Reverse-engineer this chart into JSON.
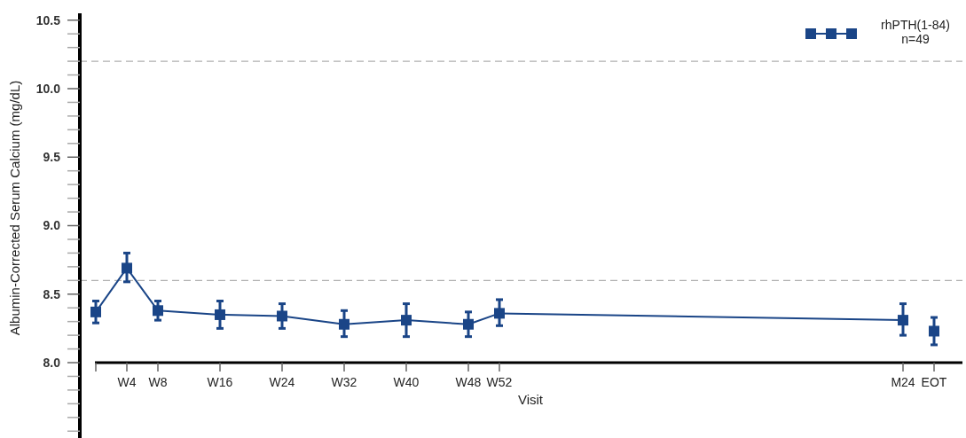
{
  "chart_data": {
    "type": "line",
    "xlabel": "Visit",
    "ylabel": "Albumin-Corrected Serum Calcium (mg/dL)",
    "categories": [
      null,
      "W4",
      "W8",
      null,
      "W16",
      null,
      "W24",
      null,
      "W32",
      null,
      "W40",
      null,
      "W48",
      "W52",
      null,
      null,
      null,
      null,
      null,
      null,
      null,
      null,
      null,
      null,
      null,
      null,
      "M24",
      "EOT"
    ],
    "ylim": [
      7.45,
      10.55
    ],
    "yticks": [
      {
        "value": 7.5,
        "label": null
      },
      {
        "value": 7.6,
        "label": null
      },
      {
        "value": 7.7,
        "label": null
      },
      {
        "value": 7.8,
        "label": null
      },
      {
        "value": 7.9,
        "label": null
      },
      {
        "value": 8.0,
        "label": "8.0"
      },
      {
        "value": 8.1,
        "label": null
      },
      {
        "value": 8.2,
        "label": null
      },
      {
        "value": 8.3,
        "label": null
      },
      {
        "value": 8.4,
        "label": null
      },
      {
        "value": 8.5,
        "label": "8.5"
      },
      {
        "value": 8.6,
        "label": null
      },
      {
        "value": 8.7,
        "label": null
      },
      {
        "value": 8.8,
        "label": null
      },
      {
        "value": 8.9,
        "label": null
      },
      {
        "value": 9.0,
        "label": "9.0"
      },
      {
        "value": 9.1,
        "label": null
      },
      {
        "value": 9.2,
        "label": null
      },
      {
        "value": 9.3,
        "label": null
      },
      {
        "value": 9.4,
        "label": null
      },
      {
        "value": 9.5,
        "label": "9.5"
      },
      {
        "value": 9.6,
        "label": null
      },
      {
        "value": 9.7,
        "label": null
      },
      {
        "value": 9.8,
        "label": null
      },
      {
        "value": 9.9,
        "label": null
      },
      {
        "value": 10.0,
        "label": "10.0"
      },
      {
        "value": 10.1,
        "label": null
      },
      {
        "value": 10.2,
        "label": null
      },
      {
        "value": 10.3,
        "label": null
      },
      {
        "value": 10.4,
        "label": null
      },
      {
        "value": 10.5,
        "label": "10.5"
      }
    ],
    "series": [
      {
        "name": "rhPTH(1-84)\nn=49",
        "color": "#1a4587",
        "values": [
          8.37,
          8.69,
          8.38,
          null,
          8.35,
          null,
          8.34,
          null,
          8.28,
          null,
          8.31,
          null,
          8.28,
          8.36,
          null,
          null,
          null,
          null,
          null,
          null,
          null,
          null,
          null,
          null,
          null,
          null,
          8.31,
          null
        ],
        "errors": [
          [
            8.29,
            8.45
          ],
          [
            8.59,
            8.8
          ],
          [
            8.31,
            8.45
          ],
          null,
          [
            8.25,
            8.45
          ],
          null,
          [
            8.25,
            8.43
          ],
          null,
          [
            8.19,
            8.38
          ],
          null,
          [
            8.19,
            8.43
          ],
          null,
          [
            8.19,
            8.37
          ],
          [
            8.27,
            8.46
          ],
          null,
          null,
          null,
          null,
          null,
          null,
          null,
          null,
          null,
          null,
          null,
          null,
          [
            8.2,
            8.43
          ],
          null
        ]
      },
      {
        "type": "scatter",
        "color": "#1a4587",
        "values": [
          null,
          null,
          null,
          null,
          null,
          null,
          null,
          null,
          null,
          null,
          null,
          null,
          null,
          null,
          null,
          null,
          null,
          null,
          null,
          null,
          null,
          null,
          null,
          null,
          null,
          null,
          null,
          8.23
        ],
        "errors": [
          null,
          null,
          null,
          null,
          null,
          null,
          null,
          null,
          null,
          null,
          null,
          null,
          null,
          null,
          null,
          null,
          null,
          null,
          null,
          null,
          null,
          null,
          null,
          null,
          null,
          null,
          null,
          [
            8.13,
            8.33
          ]
        ]
      }
    ],
    "ref_lines": [
      {
        "axis": "y",
        "value": 10.2,
        "color": "#b0b0b0",
        "line_style": "dashed"
      },
      {
        "axis": "y",
        "value": 8.6,
        "color": "#b0b0b0",
        "line_style": "dashed"
      }
    ],
    "marker": "square",
    "line_style": "solid",
    "legend": "top right",
    "grid": false
  }
}
